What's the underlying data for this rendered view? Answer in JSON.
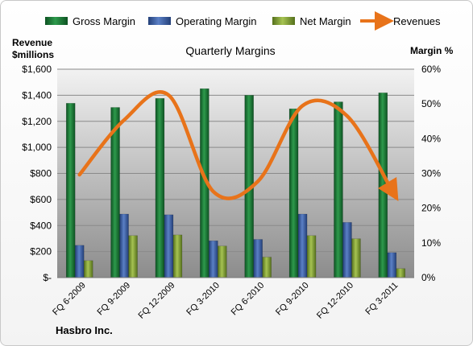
{
  "chart_data": {
    "type": "bar",
    "title": "Quarterly Margins",
    "left_axis_label_line1": "Revenue",
    "left_axis_label_line2": "$millions",
    "right_axis_label": "Margin %",
    "footer_text": "Hasbro Inc.",
    "categories": [
      "FQ 6-2009",
      "FQ 9-2009",
      "FQ 12-2009",
      "FQ 3-2010",
      "FQ 6-2010",
      "FQ 9-2010",
      "FQ 12-2010",
      "FQ 3-2011"
    ],
    "left_axis": {
      "min": 0,
      "max": 1600,
      "step": 200,
      "tick_labels": [
        "$-",
        "$200",
        "$400",
        "$600",
        "$800",
        "$1,000",
        "$1,200",
        "$1,400",
        "$1,600"
      ]
    },
    "right_axis": {
      "min": 0,
      "max": 60,
      "step": 10,
      "tick_labels": [
        "0%",
        "10%",
        "20%",
        "30%",
        "40%",
        "50%",
        "60%"
      ]
    },
    "grid": true,
    "legend_position": "top",
    "series": [
      {
        "name": "Gross Margin",
        "kind": "bar",
        "axis": "right",
        "color": "#1e7a3a",
        "values": [
          50.2,
          49.0,
          51.6,
          54.4,
          52.5,
          48.6,
          50.6,
          53.2
        ]
      },
      {
        "name": "Operating Margin",
        "kind": "bar",
        "axis": "right",
        "color": "#3f63a8",
        "values": [
          9.3,
          18.3,
          18.1,
          10.6,
          11.0,
          18.3,
          15.9,
          7.2
        ]
      },
      {
        "name": "Net Margin",
        "kind": "bar",
        "axis": "right",
        "color": "#8aa53a",
        "values": [
          4.9,
          12.1,
          12.3,
          9.1,
          5.9,
          12.1,
          11.2,
          2.6
        ]
      },
      {
        "name": "Revenues",
        "kind": "line",
        "axis": "left",
        "color": "#e8731a",
        "values": [
          790,
          1210,
          1400,
          660,
          740,
          1320,
          1240,
          670
        ]
      }
    ]
  }
}
